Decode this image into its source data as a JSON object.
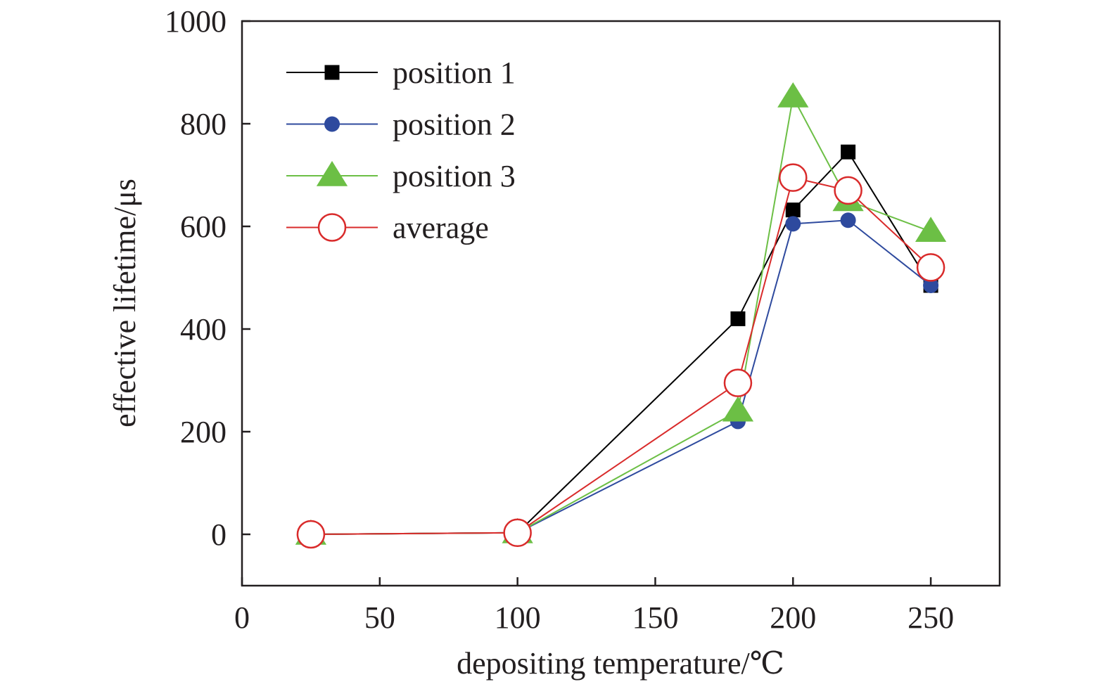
{
  "chart_data": {
    "type": "line",
    "xlabel": "depositing temperature/℃",
    "ylabel": "effective lifetime/μs",
    "xlim": [
      0,
      275
    ],
    "ylim": [
      -100,
      1000
    ],
    "xticks": [
      0,
      50,
      100,
      150,
      200,
      250
    ],
    "yticks": [
      0,
      200,
      400,
      600,
      800,
      1000
    ],
    "xtick_labels": [
      "0",
      "50",
      "100",
      "150",
      "200",
      "250"
    ],
    "ytick_labels": [
      "0",
      "200",
      "400",
      "600",
      "800",
      "1000"
    ],
    "grid": false,
    "legend_position": "top-left",
    "series": [
      {
        "name": "position 1",
        "color": "#000000",
        "marker": "filled-square",
        "x": [
          25,
          100,
          180,
          200,
          220,
          250
        ],
        "y": [
          0,
          3,
          420,
          632,
          745,
          485
        ]
      },
      {
        "name": "position 2",
        "color": "#2e4a9e",
        "marker": "filled-circle",
        "x": [
          25,
          100,
          180,
          200,
          220,
          250
        ],
        "y": [
          0,
          3,
          220,
          605,
          612,
          485
        ]
      },
      {
        "name": "position 3",
        "color": "#6cbf45",
        "marker": "filled-triangle",
        "x": [
          25,
          100,
          180,
          200,
          220,
          250
        ],
        "y": [
          0,
          3,
          240,
          852,
          650,
          590
        ]
      },
      {
        "name": "average",
        "color": "#d92b2b",
        "marker": "open-circle",
        "x": [
          25,
          100,
          180,
          200,
          220,
          250
        ],
        "y": [
          0,
          3,
          295,
          695,
          670,
          520
        ]
      }
    ]
  }
}
